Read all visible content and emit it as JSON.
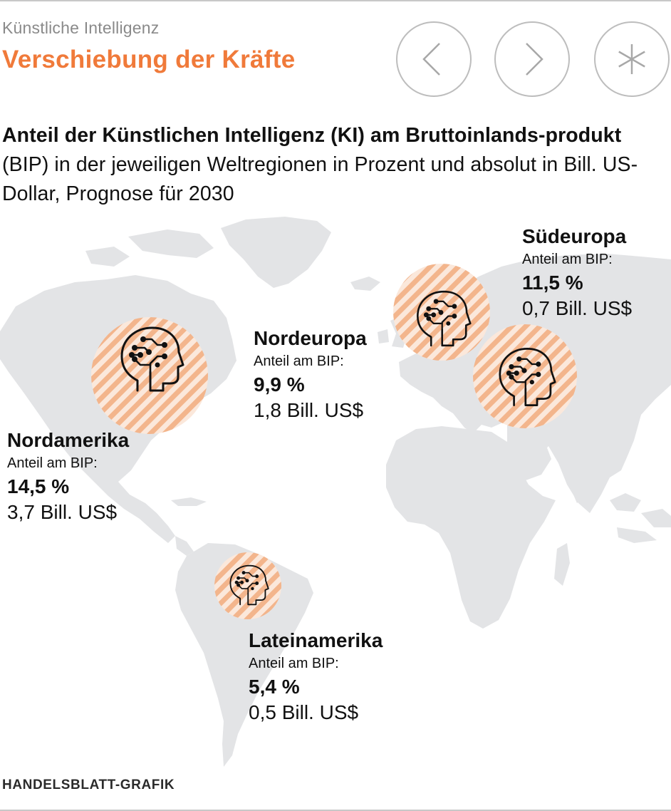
{
  "header": {
    "kicker": "Künstliche Intelligenz",
    "title": "Verschiebung der Kräfte",
    "title_color": "#f07a3a"
  },
  "nav": {
    "prev_icon": "chevron-left-icon",
    "next_icon": "chevron-right-icon",
    "menu_icon": "asterisk-icon"
  },
  "intro": {
    "bold": "Anteil der Künstlichen Intelligenz (KI) am Bruttoinlands-produkt",
    "rest": " (BIP) in der jeweiligen Weltregionen in Prozent und absolut in Bill. US-Dollar, Prognose für 2030"
  },
  "colors": {
    "land": "#e3e4e6",
    "marker_stripe": "#f3b58c",
    "marker_fill": "#fbe8db",
    "icon": "#111111"
  },
  "map": {
    "marker_icon": "ai-head-icon",
    "regions": [
      {
        "name": "Nordamerika",
        "label": "Anteil am BIP:",
        "percent": "14,5 %",
        "absolute": "3,7 Bill. US$"
      },
      {
        "name": "Nordeuropa",
        "label": "Anteil am BIP:",
        "percent": "9,9 %",
        "absolute": "1,8 Bill. US$"
      },
      {
        "name": "Südeuropa",
        "label": "Anteil am BIP:",
        "percent": "11,5 %",
        "absolute": "0,7 Bill. US$"
      },
      {
        "name": "Lateinamerika",
        "label": "Anteil am BIP:",
        "percent": "5,4 %",
        "absolute": "0,5 Bill. US$"
      }
    ]
  },
  "footer": {
    "source": "HANDELSBLATT-GRAFIK"
  }
}
